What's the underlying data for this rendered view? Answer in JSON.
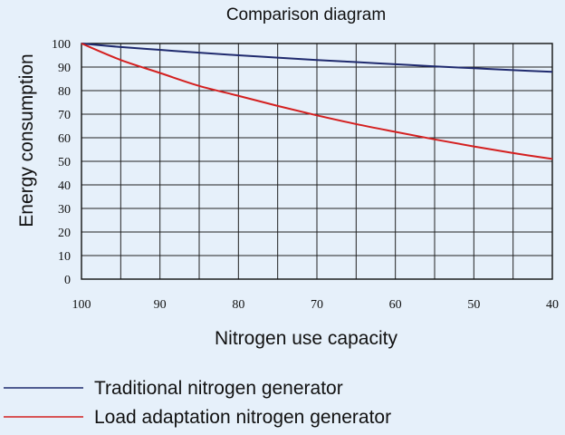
{
  "chart_data": {
    "type": "line",
    "title": "Comparison diagram",
    "xlabel": "Nitrogen use capacity",
    "ylabel": "Energy consumption",
    "x_reversed": true,
    "xlim": [
      100,
      40
    ],
    "ylim": [
      0,
      100
    ],
    "x_ticks": [
      100,
      90,
      80,
      70,
      60,
      50,
      40
    ],
    "y_ticks": [
      0,
      10,
      20,
      30,
      40,
      50,
      60,
      70,
      80,
      90,
      100
    ],
    "grid": true,
    "legend_position": "bottom-left",
    "x": [
      100,
      95,
      90,
      85,
      80,
      75,
      70,
      65,
      60,
      55,
      50,
      45,
      40
    ],
    "series": [
      {
        "name": "Traditional nitrogen generator",
        "color": "#1f2a6e",
        "values": [
          100,
          98.5,
          97.3,
          96.1,
          95.0,
          94.0,
          93.0,
          92.1,
          91.2,
          90.3,
          89.5,
          88.7,
          88.0
        ]
      },
      {
        "name": "Load adaptation nitrogen generator",
        "color": "#d42020",
        "values": [
          100,
          93.0,
          87.5,
          82.0,
          77.8,
          73.5,
          69.5,
          65.8,
          62.5,
          59.3,
          56.3,
          53.5,
          51.0
        ]
      }
    ]
  }
}
